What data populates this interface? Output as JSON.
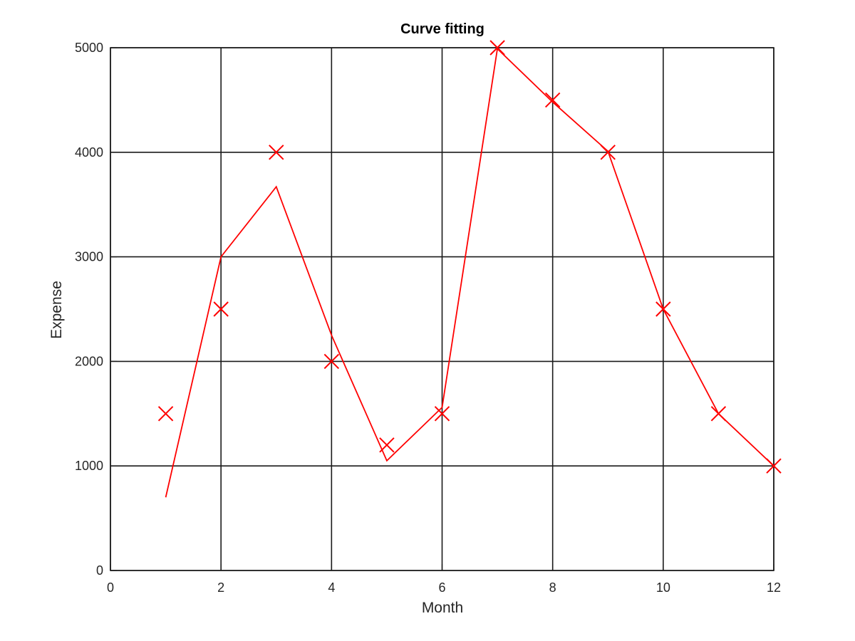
{
  "chart_data": {
    "type": "line",
    "title": "Curve fitting",
    "xlabel": "Month",
    "ylabel": "Expense",
    "xlim": [
      0,
      12
    ],
    "ylim": [
      0,
      5000
    ],
    "xticks": [
      0,
      2,
      4,
      6,
      8,
      10,
      12
    ],
    "yticks": [
      0,
      1000,
      2000,
      3000,
      4000,
      5000
    ],
    "grid": true,
    "legend": "none",
    "series": [
      {
        "style": "markers",
        "marker": "x",
        "color": "#ff0000",
        "x": [
          1,
          2,
          3,
          4,
          5,
          6,
          7,
          8,
          9,
          10,
          11,
          12
        ],
        "y": [
          1500,
          2500,
          4000,
          2000,
          1200,
          1500,
          5000,
          4500,
          4000,
          2500,
          1500,
          1000
        ]
      },
      {
        "style": "line",
        "color": "#ff0000",
        "x": [
          1,
          2,
          3,
          4,
          5,
          6,
          7,
          8,
          9,
          10,
          11,
          12
        ],
        "y": [
          700,
          3000,
          3670,
          2250,
          1050,
          1560,
          4990,
          4480,
          4010,
          2500,
          1500,
          1000
        ]
      }
    ]
  }
}
